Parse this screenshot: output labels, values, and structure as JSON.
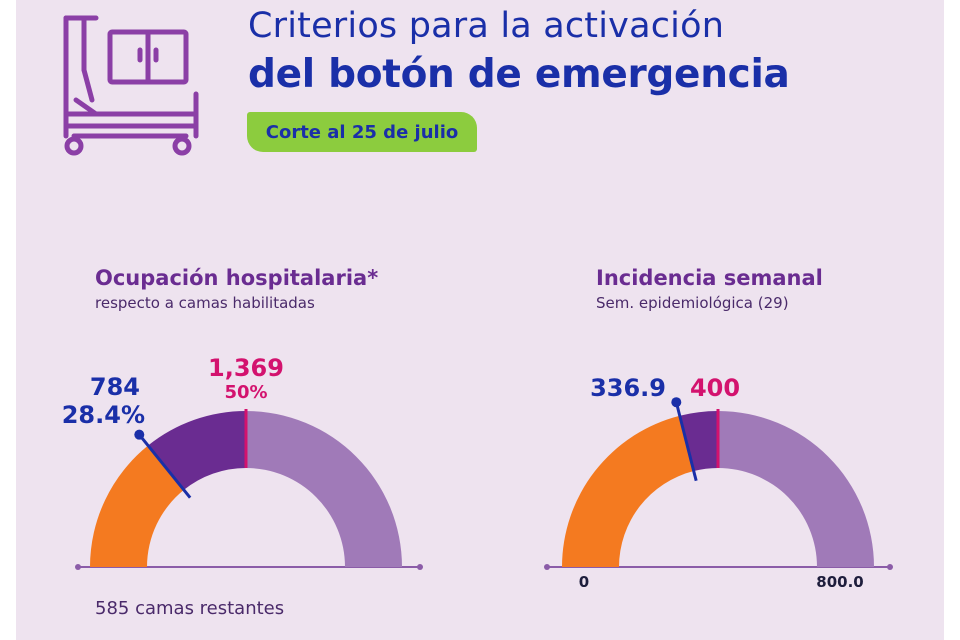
{
  "header": {
    "title_line1": "Criterios para la activación",
    "title_line2": "del botón de emergencia",
    "date_badge": "Corte al 25 de julio",
    "icon": "hospital-bed-icon"
  },
  "colors": {
    "title_blue": "#1a2fa8",
    "badge_green": "#8ccc3e",
    "orange": "#f47a20",
    "dark_purple": "#6a2c91",
    "light_purple": "#a07ab8",
    "threshold_pink": "#d3126e",
    "background": "#eee3ef"
  },
  "gauges": {
    "occupancy": {
      "title": "Ocupación hospitalaria*",
      "subtitle": "respecto a camas habilitadas",
      "current_value_label": "784",
      "current_percent_label": "28.4%",
      "threshold_value_label": "1,369",
      "threshold_percent_label": "50%",
      "footnote": "585 camas restantes"
    },
    "incidence": {
      "title": "Incidencia semanal",
      "subtitle": "Sem. epidemiológica (29)",
      "current_value_label": "336.9",
      "threshold_value_label": "400",
      "axis_min_label": "0",
      "axis_max_label": "800.0"
    }
  },
  "chart_data": [
    {
      "type": "gauge",
      "title": "Ocupación hospitalaria*",
      "subtitle": "respecto a camas habilitadas",
      "unit": "percent",
      "range": [
        0,
        100
      ],
      "current": 28.4,
      "threshold": 50,
      "current_absolute": 784,
      "threshold_absolute": 1369,
      "remaining_beds": 585
    },
    {
      "type": "gauge",
      "title": "Incidencia semanal",
      "subtitle": "Sem. epidemiológica (29)",
      "range": [
        0,
        800
      ],
      "current": 336.9,
      "threshold": 400
    }
  ]
}
